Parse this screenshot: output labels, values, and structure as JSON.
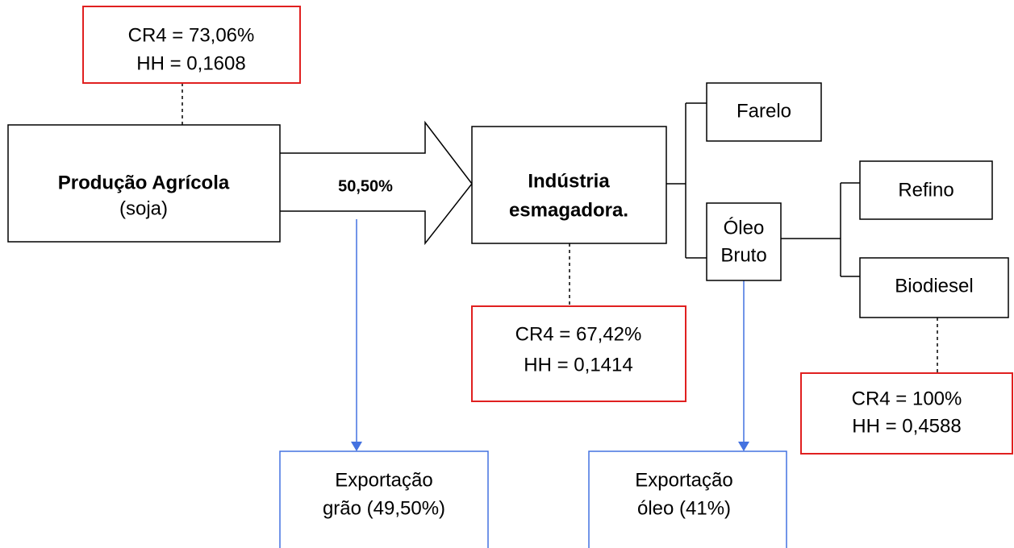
{
  "nodes": [
    {
      "lines": [
        "Produção Agrícola",
        "(soja)"
      ]
    },
    {
      "lines": [
        "Indústria",
        "esmagadora."
      ]
    },
    {
      "lines": [
        "Farelo"
      ]
    },
    {
      "lines": [
        "Óleo",
        "Bruto"
      ]
    },
    {
      "lines": [
        "Refino"
      ]
    },
    {
      "lines": [
        "Biodiesel"
      ]
    }
  ],
  "concentration": [
    {
      "lines": [
        "CR4 = 73,06%",
        "HH = 0,1608"
      ]
    },
    {
      "lines": [
        "CR4 = 67,42%",
        "HH = 0,1414"
      ]
    },
    {
      "lines": [
        "CR4 = 100%",
        "HH = 0,4588"
      ]
    }
  ],
  "arrow_label": "50,50%",
  "exports": [
    {
      "lines": [
        "Exportação",
        "grão (49,50%)"
      ]
    },
    {
      "lines": [
        "Exportação",
        "óleo (41%)"
      ]
    }
  ]
}
